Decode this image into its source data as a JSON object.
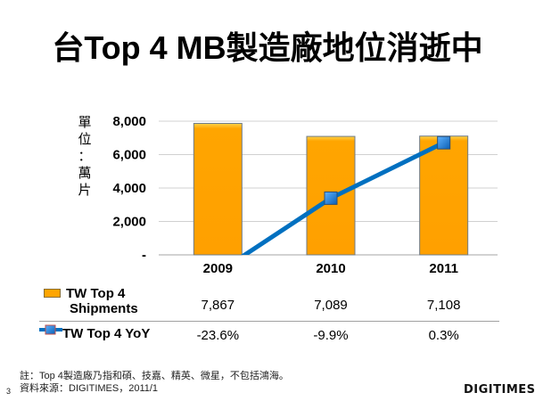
{
  "title": "台Top 4 MB製造廠地位消逝中",
  "unit_label": [
    "單",
    "位",
    "：",
    "萬",
    "片"
  ],
  "chart_data": {
    "type": "bar",
    "title": "台Top 4 MB製造廠地位消逝中",
    "xlabel": "",
    "ylabel": "單位：萬片",
    "categories": [
      "2009",
      "2010",
      "2011"
    ],
    "ylim": [
      0,
      8000
    ],
    "yticks": [
      0,
      2000,
      4000,
      6000,
      8000
    ],
    "ytick_labels": [
      "-",
      "2,000",
      "4,000",
      "6,000",
      "8,000"
    ],
    "grid": true,
    "series": [
      {
        "name": "TW Top 4 Shipments",
        "type": "bar",
        "color": "#ffa500",
        "values": [
          7867,
          7089,
          7108
        ],
        "labels": [
          "7,867",
          "7,089",
          "7,108"
        ]
      },
      {
        "name": "TW Top 4 YoY",
        "type": "line",
        "color": "#0070c0",
        "marker_color": "#1e7fd6",
        "unit": "%",
        "values": [
          -23.6,
          -9.9,
          0.3
        ],
        "labels": [
          "-23.6%",
          "-9.9%",
          "0.3%"
        ]
      }
    ],
    "legend": "data-table-below"
  },
  "table": {
    "rows": [
      {
        "label_line1": "TW Top 4",
        "label_line2": "Shipments"
      },
      {
        "label": "TW Top 4 YoY"
      }
    ]
  },
  "notes": {
    "note": "註：Top 4製造廠乃指和碩、技嘉、精英、微星，不包括鴻海。",
    "source": "資料來源：DIGITIMES，2011/1"
  },
  "page_number": "3",
  "logo": "DIGITIMES"
}
